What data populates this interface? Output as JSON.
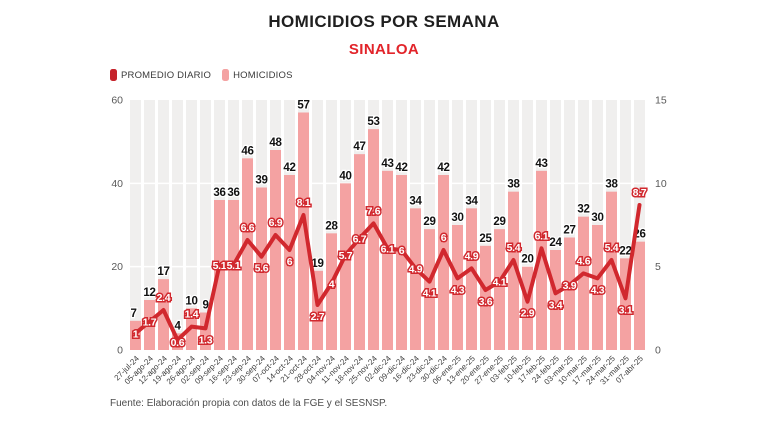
{
  "source": "Fuente: Elaboración propia con datos de la FGE y el SESNSP.",
  "chart_data": {
    "type": "bar+line",
    "title": "HOMICIDIOS POR SEMANA",
    "subtitle": "SINALOA",
    "legend": [
      {
        "label": "PROMEDIO DIARIO",
        "color": "#c5232b"
      },
      {
        "label": "HOMICIDIOS",
        "color": "#f4a2a2"
      }
    ],
    "colors": {
      "bars": "#f4a2a2",
      "line": "#d1282e",
      "subtitle": "#e2242a",
      "plot_bg": "#f0efee",
      "grid": "#ffffff"
    },
    "categories": [
      "27-jul-24",
      "05-ago-24",
      "12-ago-24",
      "19-ago-24",
      "26-ago-24",
      "02-sep-24",
      "09-sep-24",
      "16-sep-24",
      "23-sep-24",
      "30-sep-24",
      "07-oct-24",
      "14-oct-24",
      "21-oct-24",
      "28-oct-24",
      "04-nov-24",
      "11-nov-24",
      "18-nov-24",
      "25-nov-24",
      "02-dic-24",
      "09-dic-24",
      "16-dic-24",
      "23-dic-24",
      "30-dic-24",
      "06-ene-25",
      "13-ene-25",
      "20-ene-25",
      "27-ene-25",
      "03-feb-25",
      "10-feb-25",
      "17-feb-25",
      "24-feb-25",
      "03-mar-25",
      "10-mar-25",
      "17-mar-25",
      "24-mar-25",
      "31-mar-25",
      "07-abr-25"
    ],
    "series": [
      {
        "name": "HOMICIDIOS",
        "type": "bar",
        "axis": "left",
        "values": [
          7,
          12,
          17,
          4,
          10,
          9,
          36,
          36,
          46,
          39,
          48,
          42,
          57,
          19,
          28,
          40,
          47,
          53,
          43,
          42,
          34,
          29,
          42,
          30,
          34,
          25,
          29,
          38,
          20,
          43,
          24,
          27,
          32,
          30,
          38,
          22,
          26
        ]
      },
      {
        "name": "PROMEDIO DIARIO",
        "type": "line",
        "axis": "right",
        "values": [
          1,
          1.7,
          2.4,
          0.6,
          1.4,
          1.3,
          5.1,
          5.1,
          6.6,
          5.6,
          6.9,
          6,
          8.1,
          2.7,
          4,
          5.7,
          6.7,
          7.6,
          6.1,
          6,
          4.9,
          4.1,
          6,
          4.3,
          4.9,
          3.6,
          4.1,
          5.4,
          2.9,
          6.1,
          3.4,
          3.9,
          4.6,
          4.3,
          5.4,
          3.1,
          8.7
        ]
      }
    ],
    "left_axis": {
      "max": 60,
      "ticks": [
        0,
        20,
        40,
        60
      ]
    },
    "right_axis": {
      "max": 15,
      "ticks": [
        0,
        5,
        10,
        15
      ]
    },
    "grid": "on",
    "legend_position": "top-left"
  }
}
